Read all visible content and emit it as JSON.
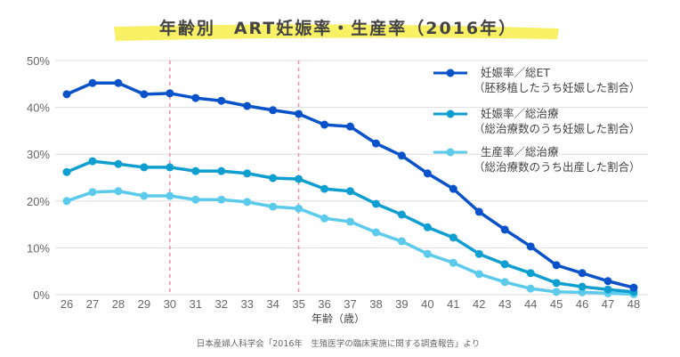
{
  "chart_data": {
    "type": "line",
    "title": "年齢別　ART妊娠率・生産率（2016年）",
    "xlabel": "年齢（歳）",
    "ylabel": "",
    "source": "日本産婦人科学会「2016年　生殖医学の臨床実施に関する調査報告」より",
    "x": [
      26,
      27,
      28,
      29,
      30,
      31,
      32,
      33,
      34,
      35,
      36,
      37,
      38,
      39,
      40,
      41,
      42,
      43,
      44,
      45,
      46,
      47,
      48
    ],
    "ylim": [
      0,
      50
    ],
    "yticks": [
      "0%",
      "10%",
      "20%",
      "30%",
      "40%",
      "50%"
    ],
    "grid": true,
    "highlight_ages": [
      30,
      35
    ],
    "legend_position": "top-right",
    "series": [
      {
        "name": "妊娠率／総ET",
        "subname": "（胚移植したうち妊娠した割合）",
        "color": "#0a52c9",
        "values": [
          42.8,
          45.2,
          45.2,
          42.8,
          43.0,
          42.0,
          41.4,
          40.3,
          39.4,
          38.6,
          36.3,
          35.9,
          32.3,
          29.7,
          25.9,
          22.6,
          17.7,
          13.9,
          10.3,
          6.3,
          4.6,
          2.9,
          1.5
        ]
      },
      {
        "name": "妊娠率／総治療",
        "subname": "（総治療数のうち妊娠した割合）",
        "color": "#0f9ed0",
        "values": [
          26.2,
          28.5,
          27.9,
          27.2,
          27.2,
          26.4,
          26.4,
          25.9,
          24.9,
          24.7,
          22.6,
          22.1,
          19.4,
          17.1,
          14.4,
          12.2,
          8.7,
          6.5,
          4.6,
          2.5,
          1.7,
          1.1,
          0.6
        ]
      },
      {
        "name": "生産率／総治療",
        "subname": "（総治療数のうち出産した割合）",
        "color": "#5ccaea",
        "values": [
          20.0,
          21.9,
          22.1,
          21.1,
          21.1,
          20.3,
          20.3,
          19.8,
          18.8,
          18.4,
          16.3,
          15.6,
          13.3,
          11.4,
          8.7,
          6.8,
          4.4,
          2.7,
          1.3,
          0.6,
          0.5,
          0.3,
          0.1
        ]
      }
    ]
  }
}
